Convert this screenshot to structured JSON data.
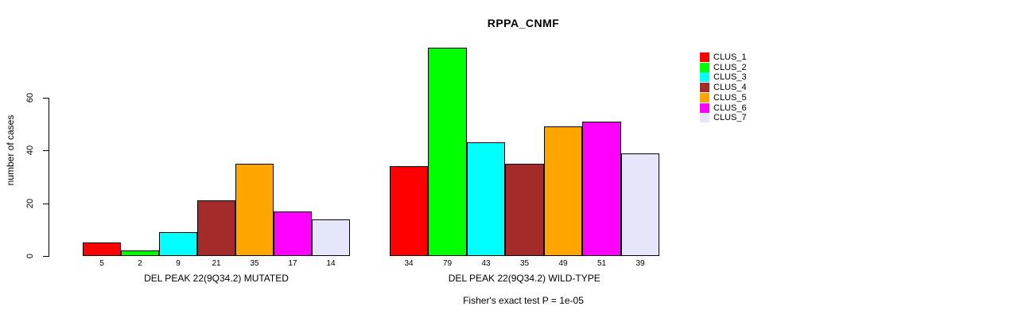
{
  "chart_data": {
    "type": "bar",
    "title": "RPPA_CNMF",
    "ylabel": "number of cases",
    "xlabel": "",
    "yticks": [
      0,
      20,
      40,
      60
    ],
    "ylim": [
      0,
      79
    ],
    "grid": false,
    "legend_position": "right",
    "legend": [
      "CLUS_1",
      "CLUS_2",
      "CLUS_3",
      "CLUS_4",
      "CLUS_5",
      "CLUS_6",
      "CLUS_7"
    ],
    "colors": [
      "#FF0000",
      "#00FF00",
      "#00FFFF",
      "#A52A2A",
      "#FFA500",
      "#FF00FF",
      "#E6E6FA"
    ],
    "bar_border_color": "#000000",
    "groups": [
      {
        "label": "DEL PEAK 22(9Q34.2) MUTATED",
        "values": [
          5,
          2,
          9,
          21,
          35,
          17,
          14
        ]
      },
      {
        "label": "DEL PEAK 22(9Q34.2) WILD-TYPE",
        "values": [
          34,
          79,
          43,
          35,
          49,
          51,
          39
        ]
      }
    ],
    "value_labels_shown": true,
    "caption": "Fisher's exact test P = 1e-05"
  }
}
